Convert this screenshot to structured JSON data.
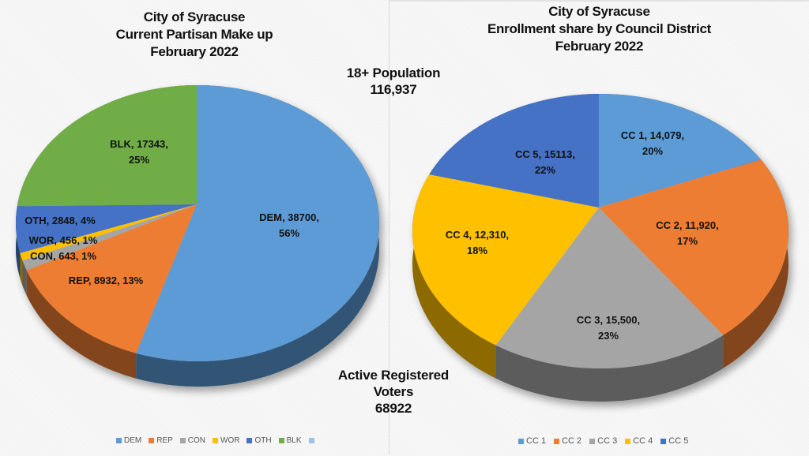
{
  "left_title": [
    "City of Syracuse",
    "Current Partisan Make up",
    "February 2022"
  ],
  "right_title": [
    "City of Syracuse",
    "Enrollment share by Council District",
    "February 2022"
  ],
  "population_note": {
    "label": "18+ Population",
    "value": "116,937"
  },
  "voters_note": {
    "lines": [
      "Active Registered",
      "Voters",
      "68922"
    ]
  },
  "chart_data": [
    {
      "type": "pie",
      "title": "City of Syracuse Current Partisan Make up February 2022",
      "categories": [
        "DEM",
        "REP",
        "CON",
        "WOR",
        "OTH",
        "BLK"
      ],
      "values": [
        38700,
        8932,
        643,
        456,
        2848,
        17343
      ],
      "percent_labels": [
        "56%",
        "13%",
        "1%",
        "1%",
        "4%",
        "25%"
      ],
      "data_labels": [
        "DEM, 38700, 56%",
        "REP, 8932, 13%",
        "CON, 643, 1%",
        "WOR, 456, 1%",
        "OTH, 2848, 4%",
        "BLK, 17343, 25%"
      ],
      "colors": [
        "#5b9bd5",
        "#ed7d31",
        "#a5a5a5",
        "#ffc000",
        "#4472c4",
        "#70ad47"
      ],
      "legend": [
        "DEM",
        "REP",
        "CON",
        "WOR",
        "OTH",
        "BLK",
        ""
      ],
      "legend_extra_color": "#9dc3e6",
      "legend_position": "bottom",
      "style": "3d"
    },
    {
      "type": "pie",
      "title": "City of Syracuse Enrollment share by Council District February 2022",
      "categories": [
        "CC 1",
        "CC 2",
        "CC 3",
        "CC 4",
        "CC 5"
      ],
      "values": [
        14079,
        11920,
        15500,
        12310,
        15113
      ],
      "percent_labels": [
        "20%",
        "17%",
        "23%",
        "18%",
        "22%"
      ],
      "data_labels": [
        "CC 1, 14,079, 20%",
        "CC 2, 11,920, 17%",
        "CC 3, 15,500, 23%",
        "CC 4, 12,310, 18%",
        "CC 5, 15113, 22%"
      ],
      "colors": [
        "#5b9bd5",
        "#ed7d31",
        "#a5a5a5",
        "#ffc000",
        "#4472c4"
      ],
      "legend": [
        "CC 1",
        "CC 2",
        "CC 3",
        "CC 4",
        "CC 5"
      ],
      "legend_position": "bottom",
      "style": "3d"
    }
  ]
}
